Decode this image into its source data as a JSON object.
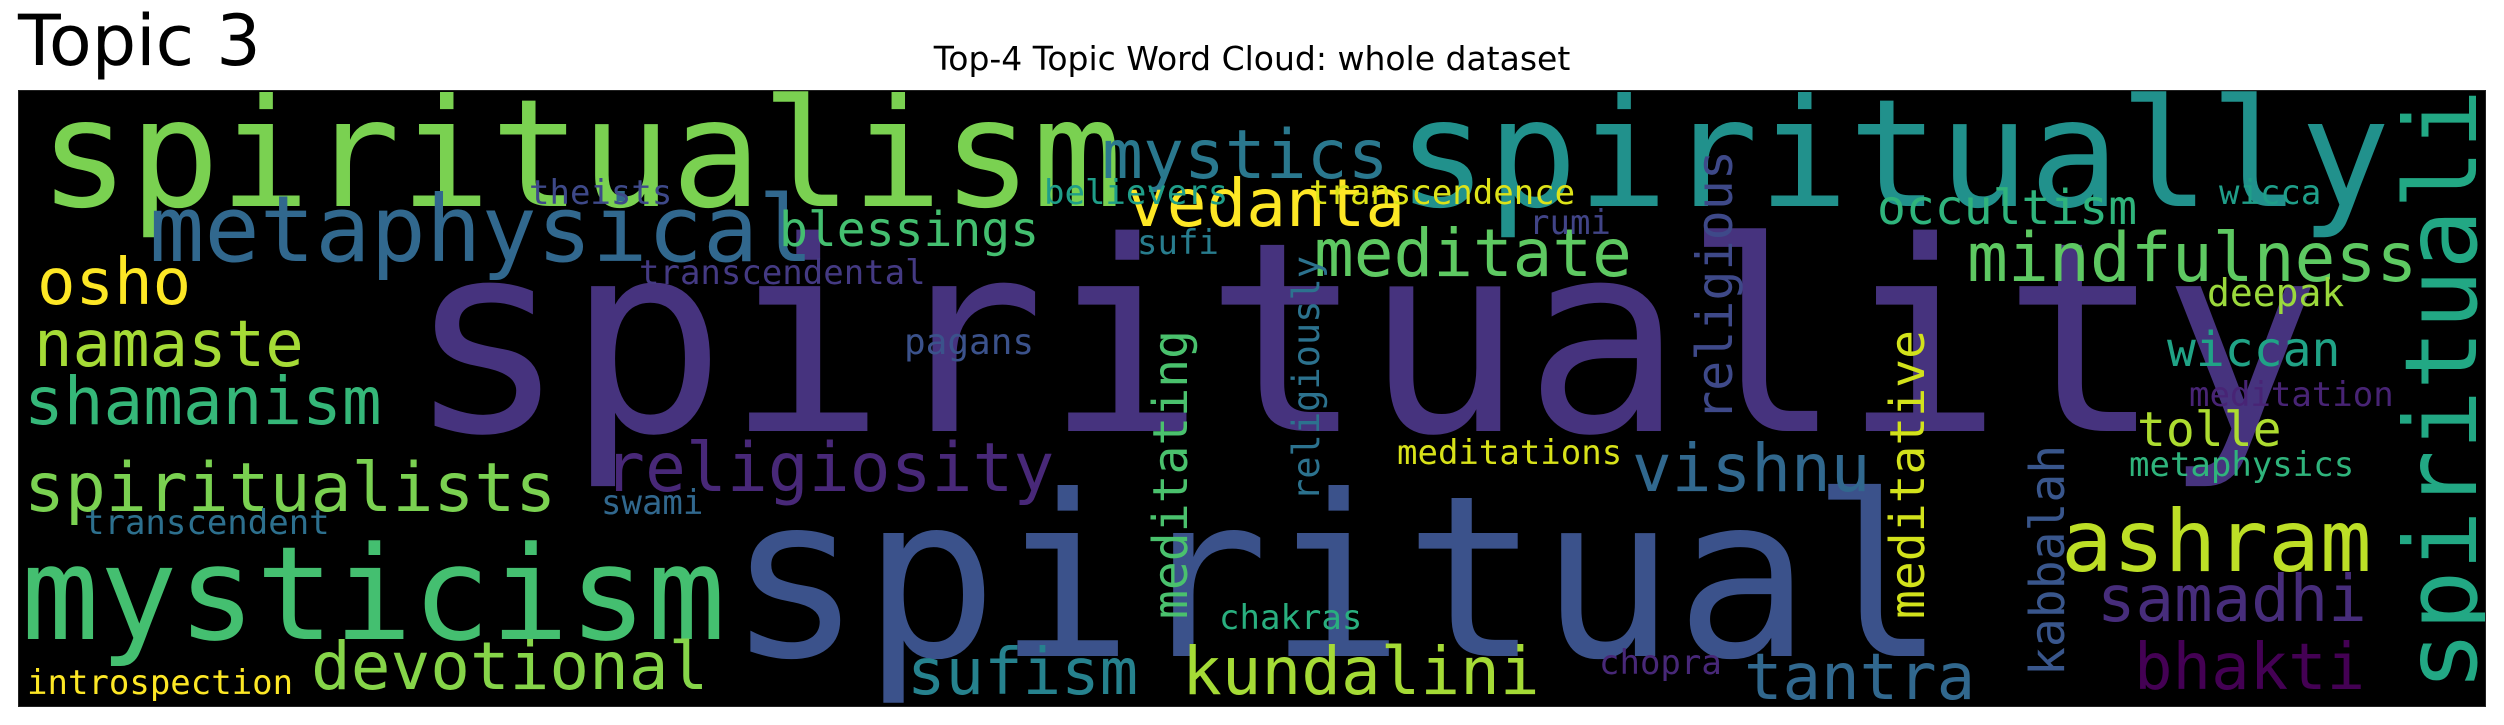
{
  "page": {
    "panel_label": "Topic 3",
    "title": "Top-4 Topic Word Cloud: whole dataset"
  },
  "chart_data": {
    "type": "word_cloud",
    "title": "Top-4 Topic Word Cloud: whole dataset",
    "background_color": "#000000",
    "palette": "viridis",
    "words": [
      {
        "text": "spirituality",
        "weight": 1.0,
        "color": "#46337e"
      },
      {
        "text": "spiritual",
        "weight": 0.93,
        "color": "#3b528b"
      },
      {
        "text": "spiritualism",
        "weight": 0.63,
        "color": "#7ad151"
      },
      {
        "text": "spiritually",
        "weight": 0.63,
        "color": "#21918c"
      },
      {
        "text": "mysticism",
        "weight": 0.55,
        "color": "#44bf70"
      },
      {
        "text": "spiritualist",
        "weight": 0.41,
        "color": "#22a884"
      },
      {
        "text": "metaphysical",
        "weight": 0.38,
        "color": "#31688e"
      },
      {
        "text": "ashram",
        "weight": 0.36,
        "color": "#bddf26"
      },
      {
        "text": "mystics",
        "weight": 0.29,
        "color": "#2a788e"
      },
      {
        "text": "spiritualists",
        "weight": 0.29,
        "color": "#7ad151"
      },
      {
        "text": "mindfulness",
        "weight": 0.29,
        "color": "#5ec962"
      },
      {
        "text": "religiosity",
        "weight": 0.29,
        "color": "#482878"
      },
      {
        "text": "vedanta",
        "weight": 0.28,
        "color": "#fde725"
      },
      {
        "text": "meditate",
        "weight": 0.28,
        "color": "#5ec962"
      },
      {
        "text": "devotional",
        "weight": 0.28,
        "color": "#86d549"
      },
      {
        "text": "shamanism",
        "weight": 0.28,
        "color": "#35b779"
      },
      {
        "text": "vishnu",
        "weight": 0.28,
        "color": "#31688e"
      },
      {
        "text": "kundalini",
        "weight": 0.28,
        "color": "#a5db36"
      },
      {
        "text": "samadhi",
        "weight": 0.27,
        "color": "#472d7b"
      },
      {
        "text": "namaste",
        "weight": 0.27,
        "color": "#a5db36"
      },
      {
        "text": "osho",
        "weight": 0.27,
        "color": "#fde725"
      },
      {
        "text": "sufism",
        "weight": 0.27,
        "color": "#26828e"
      },
      {
        "text": "tantra",
        "weight": 0.27,
        "color": "#31688e"
      },
      {
        "text": "bhakti",
        "weight": 0.27,
        "color": "#440154"
      },
      {
        "text": "religious",
        "weight": 0.24,
        "color": "#3e4989"
      },
      {
        "text": "meditating",
        "weight": 0.22,
        "color": "#4ac16d"
      },
      {
        "text": "meditative",
        "weight": 0.22,
        "color": "#d2e21b"
      },
      {
        "text": "blessings",
        "weight": 0.22,
        "color": "#44bf70"
      },
      {
        "text": "occultism",
        "weight": 0.22,
        "color": "#2fb47c"
      },
      {
        "text": "kabbalah",
        "weight": 0.22,
        "color": "#39568c"
      },
      {
        "text": "wiccan",
        "weight": 0.22,
        "color": "#20a386"
      },
      {
        "text": "tolle",
        "weight": 0.22,
        "color": "#addc30"
      },
      {
        "text": "religiously",
        "weight": 0.17,
        "color": "#2c728e"
      },
      {
        "text": "deepak",
        "weight": 0.18,
        "color": "#9bd93c"
      },
      {
        "text": "pagans",
        "weight": 0.17,
        "color": "#3b528b"
      },
      {
        "text": "meditation",
        "weight": 0.16,
        "color": "#482475"
      },
      {
        "text": "metaphysics",
        "weight": 0.16,
        "color": "#2fb47c"
      },
      {
        "text": "meditations",
        "weight": 0.16,
        "color": "#d8e219"
      },
      {
        "text": "theists",
        "weight": 0.15,
        "color": "#3e4989"
      },
      {
        "text": "believers",
        "weight": 0.15,
        "color": "#1f9e89"
      },
      {
        "text": "transcendence",
        "weight": 0.15,
        "color": "#dde318"
      },
      {
        "text": "wicca",
        "weight": 0.15,
        "color": "#1f9e89"
      },
      {
        "text": "sufi",
        "weight": 0.15,
        "color": "#287d8e"
      },
      {
        "text": "rumi",
        "weight": 0.15,
        "color": "#414487"
      },
      {
        "text": "transcendental",
        "weight": 0.15,
        "color": "#443a83"
      },
      {
        "text": "transcendent",
        "weight": 0.15,
        "color": "#2d708e"
      },
      {
        "text": "swami",
        "weight": 0.15,
        "color": "#31688e"
      },
      {
        "text": "chakras",
        "weight": 0.15,
        "color": "#29af7f"
      },
      {
        "text": "chopra",
        "weight": 0.15,
        "color": "#482878"
      },
      {
        "text": "introspection",
        "weight": 0.15,
        "color": "#fde725"
      }
    ]
  }
}
